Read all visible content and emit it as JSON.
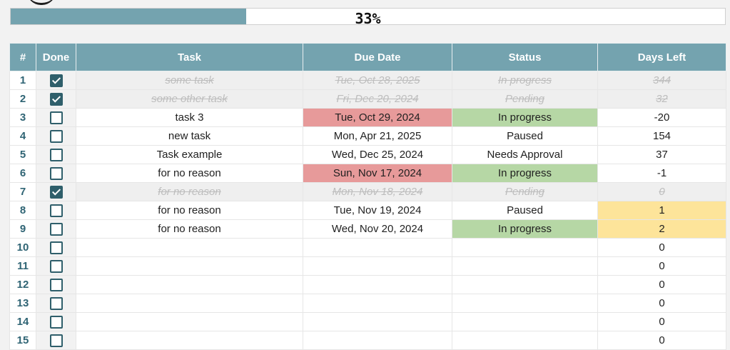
{
  "progress": {
    "label": "33%",
    "fraction": 0.33
  },
  "colors": {
    "header": "#74a3af",
    "overdue": "#e79a9a",
    "in_progress": "#b6d7a5",
    "soon": "#fde49a"
  },
  "columns": [
    "#",
    "Done",
    "Task",
    "Due Date",
    "Status",
    "Days Left"
  ],
  "rows": [
    {
      "num": "1",
      "done": true,
      "task": "some task",
      "due": "Tue, Oct 28, 2025",
      "status": "In progress",
      "days": "344"
    },
    {
      "num": "2",
      "done": true,
      "task": "some other task",
      "due": "Fri, Dec 20, 2024",
      "status": "Pending",
      "days": "32"
    },
    {
      "num": "3",
      "done": false,
      "task": "task 3",
      "due": "Tue, Oct 29, 2024",
      "status": "In progress",
      "days": "-20",
      "due_hl": "red",
      "status_hl": "green"
    },
    {
      "num": "4",
      "done": false,
      "task": "new task",
      "due": "Mon, Apr 21, 2025",
      "status": "Paused",
      "days": "154"
    },
    {
      "num": "5",
      "done": false,
      "task": "Task example",
      "due": "Wed, Dec 25, 2024",
      "status": "Needs Approval",
      "days": "37"
    },
    {
      "num": "6",
      "done": false,
      "task": "for no reason",
      "due": "Sun, Nov 17, 2024",
      "status": "In progress",
      "days": "-1",
      "due_hl": "red",
      "status_hl": "green"
    },
    {
      "num": "7",
      "done": true,
      "task": "for no reason",
      "due": "Mon, Nov 18, 2024",
      "status": "Pending",
      "days": "0"
    },
    {
      "num": "8",
      "done": false,
      "task": "for no reason",
      "due": "Tue, Nov 19, 2024",
      "status": "Paused",
      "days": "1",
      "days_hl": "yellow"
    },
    {
      "num": "9",
      "done": false,
      "task": "for no reason",
      "due": "Wed, Nov 20, 2024",
      "status": "In progress",
      "days": "2",
      "status_hl": "green",
      "days_hl": "yellow"
    },
    {
      "num": "10",
      "done": false,
      "task": "",
      "due": "",
      "status": "",
      "days": "0"
    },
    {
      "num": "11",
      "done": false,
      "task": "",
      "due": "",
      "status": "",
      "days": "0"
    },
    {
      "num": "12",
      "done": false,
      "task": "",
      "due": "",
      "status": "",
      "days": "0"
    },
    {
      "num": "13",
      "done": false,
      "task": "",
      "due": "",
      "status": "",
      "days": "0"
    },
    {
      "num": "14",
      "done": false,
      "task": "",
      "due": "",
      "status": "",
      "days": "0"
    },
    {
      "num": "15",
      "done": false,
      "task": "",
      "due": "",
      "status": "",
      "days": "0"
    }
  ]
}
